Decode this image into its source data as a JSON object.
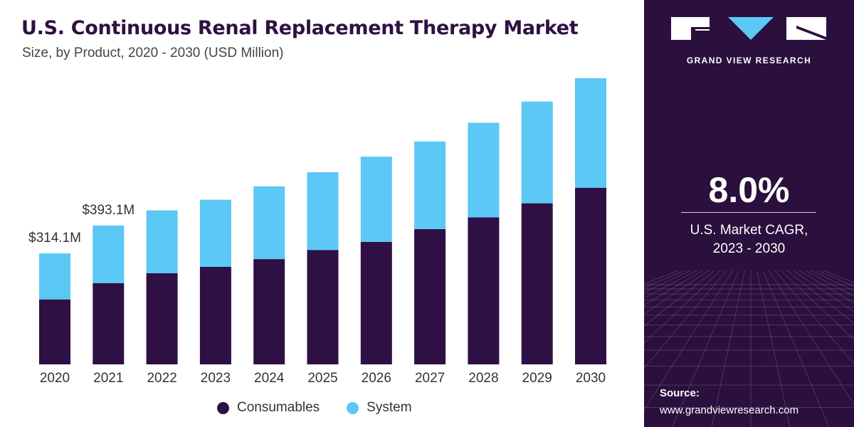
{
  "header": {
    "title": "U.S. Continuous Renal Replacement Therapy Market",
    "subtitle": "Size, by Product, 2020 - 2030 (USD Million)"
  },
  "chart_data": {
    "type": "bar",
    "stacked": true,
    "categories": [
      "2020",
      "2021",
      "2022",
      "2023",
      "2024",
      "2025",
      "2026",
      "2027",
      "2028",
      "2029",
      "2030"
    ],
    "series": [
      {
        "name": "Consumables",
        "color": "#2e1045",
        "values": [
          184.0,
          230.0,
          258.0,
          276.0,
          298.0,
          324.0,
          347.0,
          383.0,
          416.0,
          456.0,
          500.0
        ]
      },
      {
        "name": "System",
        "color": "#5bc8f5",
        "values": [
          130.1,
          163.1,
          178.0,
          190.0,
          206.0,
          220.0,
          241.0,
          248.0,
          268.0,
          288.0,
          310.0
        ]
      }
    ],
    "data_labels": [
      {
        "category": "2020",
        "text": "$314.1M"
      },
      {
        "category": "2021",
        "text": "$393.1M"
      }
    ],
    "xlabel": "",
    "ylabel": "",
    "ylim": [
      0,
      830
    ],
    "grid": false,
    "legend_position": "bottom"
  },
  "side_panel": {
    "brand": "GRAND VIEW RESEARCH",
    "cagr_value": "8.0%",
    "cagr_label_line1": "U.S. Market CAGR,",
    "cagr_label_line2": "2023 - 2030",
    "source_title": "Source:",
    "source_url": "www.grandviewresearch.com",
    "background_color": "#2b0f3d"
  }
}
